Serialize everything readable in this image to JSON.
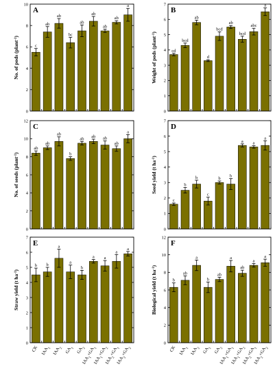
{
  "colors": {
    "bar": "#7a7000",
    "bar_edge": "#000000",
    "axis": "#000000"
  },
  "x_categories": [
    "CK",
    "IAA1",
    "IAA2",
    "GA1",
    "GA2",
    "IAA1+GA1",
    "IAA1+GA2",
    "IAA2+GA1",
    "IAA2+GA2"
  ],
  "chart_data": [
    {
      "panel": "A",
      "type": "bar",
      "ylabel": "No. of pods (plant-1)",
      "ylim": [
        0,
        10
      ],
      "yticks": [
        0,
        2,
        4,
        6,
        8,
        10
      ],
      "values": [
        5.5,
        7.4,
        8.2,
        6.4,
        7.5,
        8.4,
        7.5,
        8.3,
        9.0
      ],
      "errors": [
        0.35,
        0.5,
        0.45,
        0.5,
        0.55,
        0.45,
        0.15,
        0.15,
        0.6
      ],
      "letters": [
        "c",
        "ab",
        "ab",
        "bc",
        "ab",
        "ab",
        "ab",
        "ab",
        "a"
      ]
    },
    {
      "panel": "B",
      "type": "bar",
      "ylabel": "Weight of pods (plant-1)",
      "ylim": [
        0,
        7
      ],
      "yticks": [
        0,
        1,
        2,
        3,
        4,
        5,
        6,
        7
      ],
      "values": [
        3.7,
        4.3,
        5.8,
        3.3,
        4.9,
        5.5,
        4.7,
        5.2,
        6.5
      ],
      "errors": [
        0.08,
        0.15,
        0.15,
        0.06,
        0.28,
        0.1,
        0.2,
        0.22,
        0.25
      ],
      "letters": [
        "cd",
        "bcd",
        "ab",
        "d",
        "bcd",
        "ab",
        "bcd",
        "abc",
        "a"
      ]
    },
    {
      "panel": "C",
      "type": "bar",
      "ylabel": "No. of seeds (plant-1)",
      "ylim": [
        0,
        12
      ],
      "yticks": [
        0,
        2,
        4,
        6,
        8,
        10,
        12
      ],
      "values": [
        8.4,
        9.0,
        9.7,
        7.8,
        9.5,
        9.7,
        9.3,
        8.9,
        10.0
      ],
      "errors": [
        0.25,
        0.2,
        0.5,
        0.2,
        0.2,
        0.25,
        0.45,
        0.3,
        0.45
      ],
      "letters": [
        "ab",
        "ab",
        "ab",
        "b",
        "ab",
        "ab",
        "ab",
        "ab",
        "a"
      ]
    },
    {
      "panel": "D",
      "type": "bar",
      "ylabel": "Seed yield (t ha-1)",
      "ylim": [
        0,
        7
      ],
      "yticks": [
        0,
        1,
        2,
        3,
        4,
        5,
        6,
        7
      ],
      "values": [
        1.6,
        2.5,
        2.9,
        1.8,
        3.0,
        2.9,
        5.4,
        5.3,
        5.4
      ],
      "errors": [
        0.08,
        0.18,
        0.25,
        0.25,
        0.1,
        0.35,
        0.1,
        0.08,
        0.3
      ],
      "letters": [
        "c",
        "b",
        "b",
        "c",
        "b",
        "b",
        "a",
        "a",
        "a"
      ]
    },
    {
      "panel": "E",
      "type": "bar",
      "ylabel": "Straw yield (t ha-1)",
      "ylim": [
        0,
        7
      ],
      "yticks": [
        0,
        1,
        2,
        3,
        4,
        5,
        6,
        7
      ],
      "values": [
        4.5,
        4.7,
        5.6,
        4.7,
        4.5,
        5.4,
        5.1,
        5.4,
        5.9
      ],
      "errors": [
        0.45,
        0.3,
        0.6,
        0.45,
        0.3,
        0.12,
        0.35,
        0.45,
        0.15
      ],
      "letters": [
        "b",
        "b",
        "a",
        "a",
        "b",
        "a",
        "a",
        "a",
        "a"
      ]
    },
    {
      "panel": "F",
      "type": "bar",
      "ylabel": "Biological yield (t ha-1)",
      "ylim": [
        0,
        12
      ],
      "yticks": [
        0,
        2,
        4,
        6,
        8,
        10,
        12
      ],
      "values": [
        6.3,
        7.1,
        8.8,
        6.3,
        7.2,
        8.7,
        7.9,
        8.8,
        9.1
      ],
      "errors": [
        0.5,
        0.5,
        0.6,
        0.6,
        0.25,
        0.65,
        0.35,
        0.2,
        0.4
      ],
      "letters": [
        "b",
        "ab",
        "a",
        "b",
        "ab",
        "a",
        "ab",
        "a",
        "a"
      ]
    }
  ]
}
